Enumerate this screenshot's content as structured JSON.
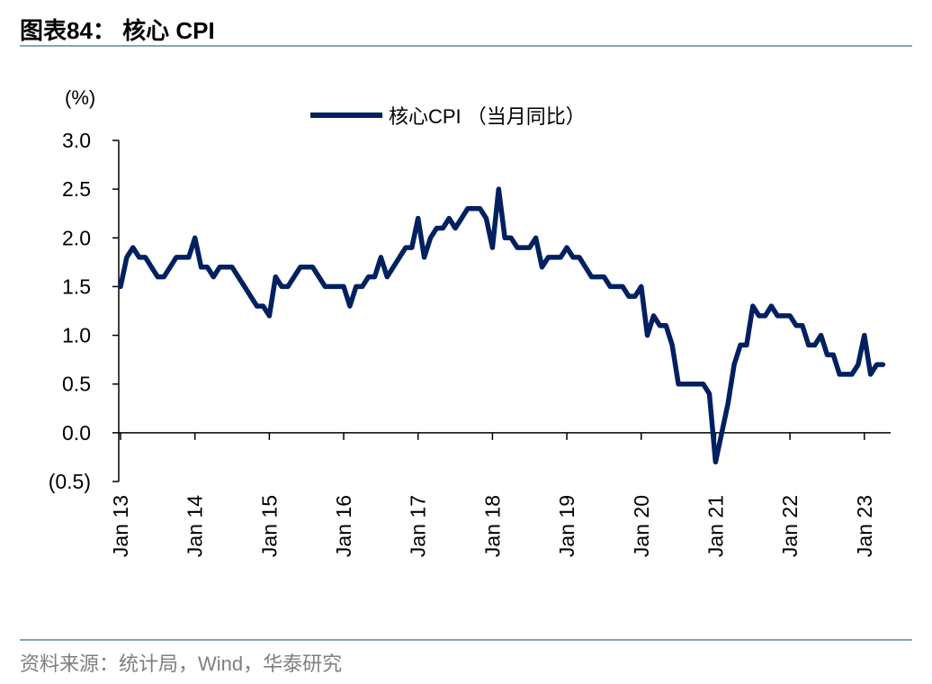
{
  "header": {
    "title": "图表84： 核心 CPI"
  },
  "footer": {
    "source": "资料来源：统计局，Wind，华泰研究"
  },
  "colors": {
    "line": "#002060",
    "rule": "#8aa1bd",
    "footer": "#7f7f7f"
  },
  "chart_data": {
    "type": "line",
    "unit_label": "(%)",
    "ylim": [
      -0.5,
      3.0
    ],
    "yticks": [
      "(0.5)",
      "0.0",
      "0.5",
      "1.0",
      "1.5",
      "2.0",
      "2.5",
      "3.0"
    ],
    "ytick_values": [
      -0.5,
      0,
      0.5,
      1.0,
      1.5,
      2.0,
      2.5,
      3.0
    ],
    "xtick_labels": [
      "Jan 13",
      "Jan 14",
      "Jan 15",
      "Jan 16",
      "Jan 17",
      "Jan 18",
      "Jan 19",
      "Jan 20",
      "Jan 21",
      "Jan 22",
      "Jan 23"
    ],
    "legend": "top-center",
    "grid": false,
    "series": [
      {
        "name": "核心CPI （当月同比）",
        "start": "2013-01",
        "frequency": "monthly",
        "values": [
          1.5,
          1.8,
          1.9,
          1.8,
          1.8,
          1.7,
          1.6,
          1.6,
          1.7,
          1.8,
          1.8,
          1.8,
          2.0,
          1.7,
          1.7,
          1.6,
          1.7,
          1.7,
          1.7,
          1.6,
          1.5,
          1.4,
          1.3,
          1.3,
          1.2,
          1.6,
          1.5,
          1.5,
          1.6,
          1.7,
          1.7,
          1.7,
          1.6,
          1.5,
          1.5,
          1.5,
          1.5,
          1.3,
          1.5,
          1.5,
          1.6,
          1.6,
          1.8,
          1.6,
          1.7,
          1.8,
          1.9,
          1.9,
          2.2,
          1.8,
          2.0,
          2.1,
          2.1,
          2.2,
          2.1,
          2.2,
          2.3,
          2.3,
          2.3,
          2.2,
          1.9,
          2.5,
          2.0,
          2.0,
          1.9,
          1.9,
          1.9,
          2.0,
          1.7,
          1.8,
          1.8,
          1.8,
          1.9,
          1.8,
          1.8,
          1.7,
          1.6,
          1.6,
          1.6,
          1.5,
          1.5,
          1.5,
          1.4,
          1.4,
          1.5,
          1.0,
          1.2,
          1.1,
          1.1,
          0.9,
          0.5,
          0.5,
          0.5,
          0.5,
          0.5,
          0.4,
          -0.3,
          0.0,
          0.3,
          0.7,
          0.9,
          0.9,
          1.3,
          1.2,
          1.2,
          1.3,
          1.2,
          1.2,
          1.2,
          1.1,
          1.1,
          0.9,
          0.9,
          1.0,
          0.8,
          0.8,
          0.6,
          0.6,
          0.6,
          0.7,
          1.0,
          0.6,
          0.7,
          0.7
        ]
      }
    ]
  }
}
